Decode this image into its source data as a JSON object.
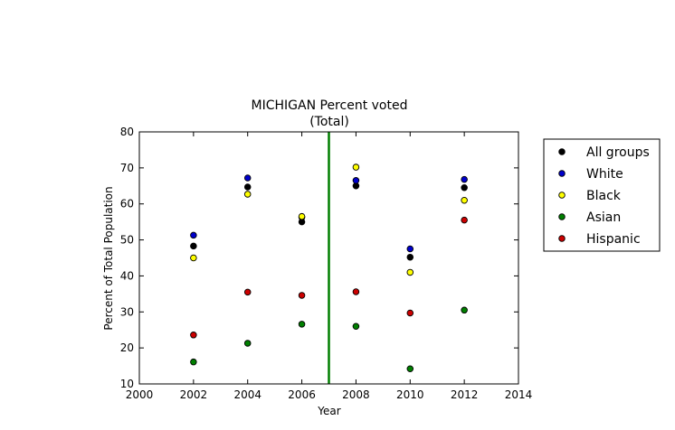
{
  "chart_data": {
    "type": "scatter",
    "title": "MICHIGAN Percent voted",
    "subtitle": "(Total)",
    "xlabel": "Year",
    "ylabel": "Percent of Total Population",
    "xlim": [
      2000,
      2014
    ],
    "ylim": [
      10,
      80
    ],
    "xticks": [
      2000,
      2002,
      2004,
      2006,
      2008,
      2010,
      2012,
      2014
    ],
    "yticks": [
      10,
      20,
      30,
      40,
      50,
      60,
      70,
      80
    ],
    "grid": false,
    "legend_position": "outside-right",
    "vertical_line": {
      "x": 2007,
      "color": "#007f00"
    },
    "series": [
      {
        "name": "All groups",
        "color": "#000000",
        "x": [
          2002,
          2004,
          2006,
          2008,
          2010,
          2012
        ],
        "y": [
          48.3,
          64.7,
          55.0,
          65.0,
          45.2,
          64.5
        ]
      },
      {
        "name": "White",
        "color": "#0000cc",
        "x": [
          2002,
          2004,
          2006,
          2008,
          2010,
          2012
        ],
        "y": [
          51.3,
          67.2,
          56.3,
          66.5,
          47.5,
          66.8
        ]
      },
      {
        "name": "Black",
        "color": "#ffff00",
        "x": [
          2002,
          2004,
          2006,
          2008,
          2010,
          2012
        ],
        "y": [
          45.0,
          62.7,
          56.5,
          70.2,
          41.0,
          61.0
        ]
      },
      {
        "name": "Asian",
        "color": "#007f00",
        "x": [
          2002,
          2004,
          2006,
          2008,
          2010,
          2012
        ],
        "y": [
          16.1,
          21.3,
          26.6,
          26.0,
          14.2,
          30.5
        ]
      },
      {
        "name": "Hispanic",
        "color": "#cc0000",
        "x": [
          2002,
          2004,
          2006,
          2008,
          2010,
          2012
        ],
        "y": [
          23.6,
          35.5,
          34.6,
          35.6,
          29.7,
          55.5
        ]
      }
    ]
  }
}
